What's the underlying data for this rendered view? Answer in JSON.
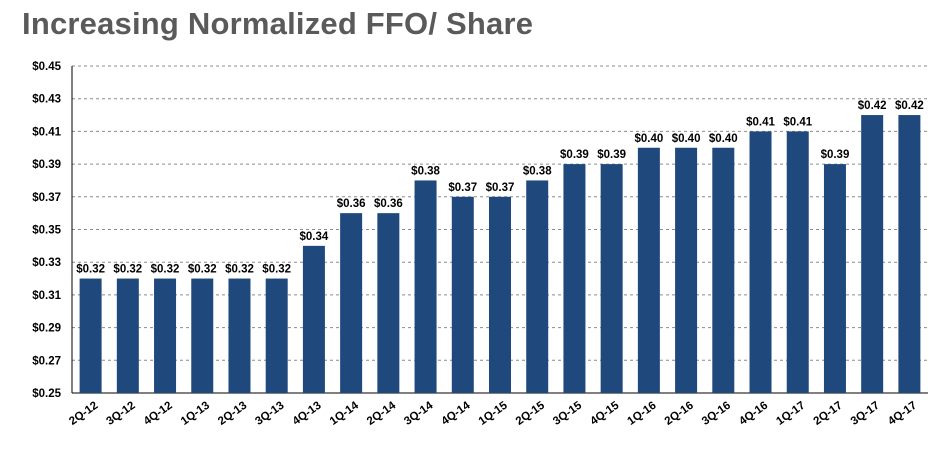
{
  "chart_data": {
    "type": "bar",
    "title": "Increasing Normalized FFO/ Share",
    "categories": [
      "2Q-12",
      "3Q-12",
      "4Q-12",
      "1Q-13",
      "2Q-13",
      "3Q-13",
      "4Q-13",
      "1Q-14",
      "2Q-14",
      "3Q-14",
      "4Q-14",
      "1Q-15",
      "2Q-15",
      "3Q-15",
      "4Q-15",
      "1Q-16",
      "2Q-16",
      "3Q-16",
      "4Q-16",
      "1Q-17",
      "2Q-17",
      "3Q-17",
      "4Q-17"
    ],
    "values": [
      0.32,
      0.32,
      0.32,
      0.32,
      0.32,
      0.32,
      0.34,
      0.36,
      0.36,
      0.38,
      0.37,
      0.37,
      0.38,
      0.39,
      0.39,
      0.4,
      0.4,
      0.4,
      0.41,
      0.41,
      0.39,
      0.42,
      0.42
    ],
    "data_labels": [
      "$0.32",
      "$0.32",
      "$0.32",
      "$0.32",
      "$0.32",
      "$0.32",
      "$0.34",
      "$0.36",
      "$0.36",
      "$0.38",
      "$0.37",
      "$0.37",
      "$0.38",
      "$0.39",
      "$0.39",
      "$0.40",
      "$0.40",
      "$0.40",
      "$0.41",
      "$0.41",
      "$0.39",
      "$0.42",
      "$0.42"
    ],
    "yticks": [
      0.25,
      0.27,
      0.29,
      0.31,
      0.33,
      0.35,
      0.37,
      0.39,
      0.41,
      0.43,
      0.45
    ],
    "ytick_labels": [
      "$0.25",
      "$0.27",
      "$0.29",
      "$0.31",
      "$0.33",
      "$0.35",
      "$0.37",
      "$0.39",
      "$0.41",
      "$0.43",
      "$0.45"
    ],
    "ylim": [
      0.25,
      0.45
    ],
    "xlabel": "",
    "ylabel": "",
    "grid": "horizontal dashed",
    "bar_color": "#1f497d"
  }
}
